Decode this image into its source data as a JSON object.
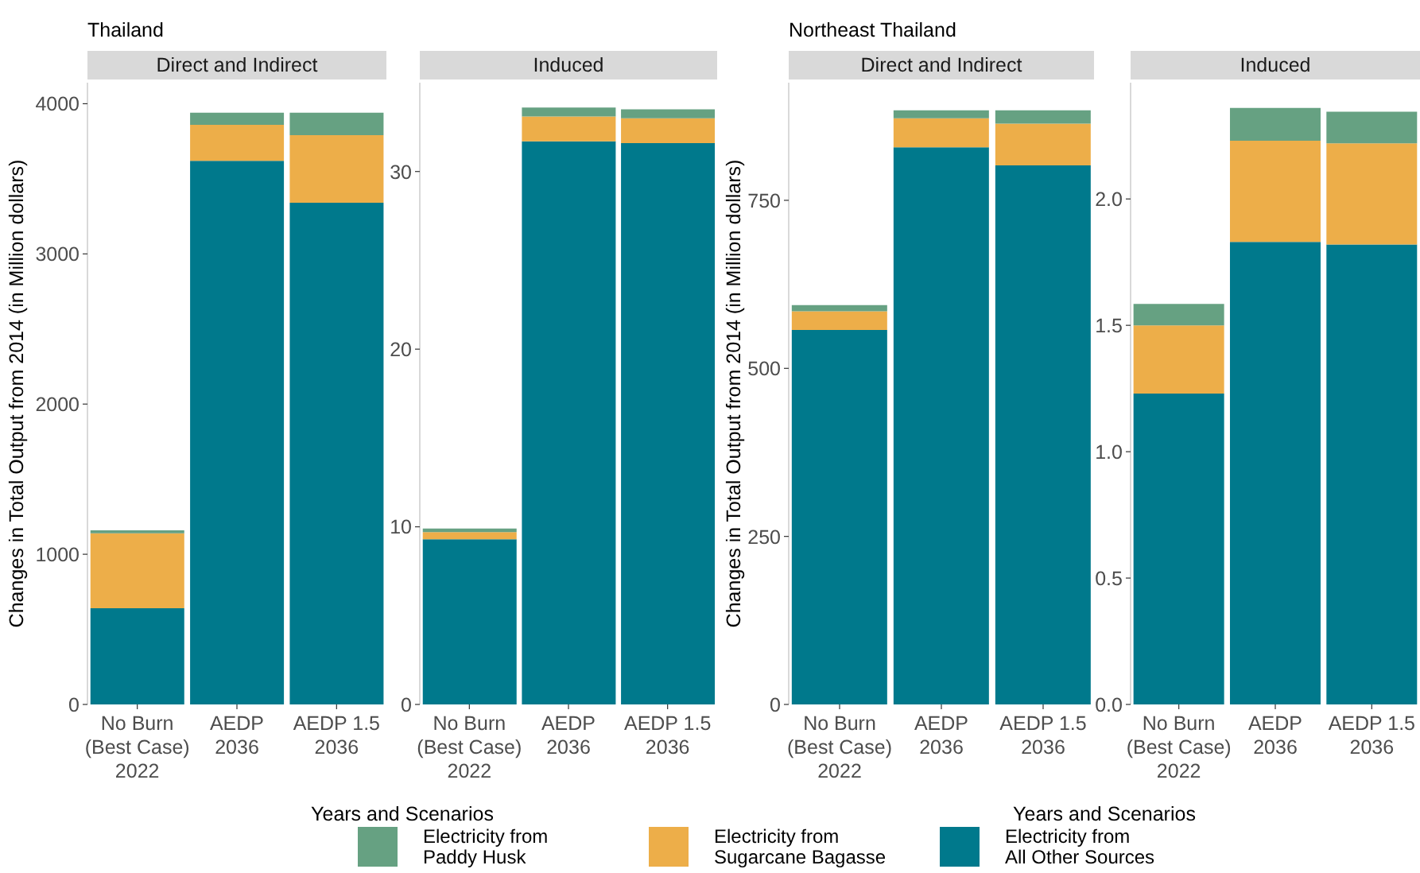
{
  "chart_data": [
    {
      "type": "bar",
      "title": "Thailand",
      "subtitle": "Direct and Indirect",
      "ylabel": "Changes in Total Output from 2014 (in Million dollars)",
      "xlabel": "Years and Scenarios",
      "stacked": true,
      "legend": "bottom",
      "categories": [
        "No Burn\n(Best Case)\n2022",
        "AEDP\n\n2036",
        "AEDP 1.5\n\n2036"
      ],
      "series": [
        {
          "name": "Electricity from All Other Sources",
          "color": "#00798c",
          "values": [
            640,
            3620,
            3340
          ]
        },
        {
          "name": "Electricity from Sugarcane Bagasse",
          "color": "#edae49",
          "values": [
            500,
            240,
            450
          ]
        },
        {
          "name": "Electricity from Paddy Husk",
          "color": "#66a182",
          "values": [
            20,
            80,
            150
          ]
        }
      ],
      "ylim": [
        0,
        4140
      ],
      "yticks": [
        0,
        1000,
        2000,
        3000,
        4000
      ]
    },
    {
      "type": "bar",
      "subtitle": "Induced",
      "stacked": true,
      "categories": [
        "No Burn\n(Best Case)\n2022",
        "AEDP\n\n2036",
        "AEDP 1.5\n\n2036"
      ],
      "series": [
        {
          "color": "#00798c",
          "values": [
            9.3,
            31.7,
            31.6
          ]
        },
        {
          "color": "#edae49",
          "values": [
            0.4,
            1.4,
            1.4
          ]
        },
        {
          "color": "#66a182",
          "values": [
            0.2,
            0.5,
            0.5
          ]
        }
      ],
      "ylim": [
        0,
        35
      ],
      "yticks": [
        0,
        10,
        20,
        30
      ]
    },
    {
      "type": "bar",
      "title": "Northeast Thailand",
      "subtitle": "Direct and Indirect",
      "ylabel": "Changes in Total Output from 2014 (in Million dollars)",
      "xlabel": "Years and Scenarios",
      "stacked": true,
      "categories": [
        "No Burn\n(Best Case)\n2022",
        "AEDP\n\n2036",
        "AEDP 1.5\n\n2036"
      ],
      "series": [
        {
          "color": "#00798c",
          "values": [
            557,
            829,
            802
          ]
        },
        {
          "color": "#edae49",
          "values": [
            28,
            43,
            62
          ]
        },
        {
          "color": "#66a182",
          "values": [
            9,
            12,
            20
          ]
        }
      ],
      "ylim": [
        0,
        925
      ],
      "yticks": [
        0,
        250,
        500,
        750
      ]
    },
    {
      "type": "bar",
      "subtitle": "Induced",
      "stacked": true,
      "categories": [
        "No Burn\n(Best Case)\n2022",
        "AEDP\n\n2036",
        "AEDP 1.5\n\n2036"
      ],
      "series": [
        {
          "color": "#00798c",
          "values": [
            1.23,
            1.83,
            1.82
          ]
        },
        {
          "color": "#edae49",
          "values": [
            0.27,
            0.4,
            0.4
          ]
        },
        {
          "color": "#66a182",
          "values": [
            0.085,
            0.13,
            0.125
          ]
        }
      ],
      "ylim": [
        0,
        2.46
      ],
      "yticks": [
        {
          "value": 0,
          "label": "0.0"
        },
        {
          "value": 0.5,
          "label": "0.5"
        },
        {
          "value": 1,
          "label": "1.0"
        },
        {
          "value": 1.5,
          "label": "1.5"
        },
        {
          "value": 2,
          "label": "2.0"
        }
      ]
    }
  ]
}
